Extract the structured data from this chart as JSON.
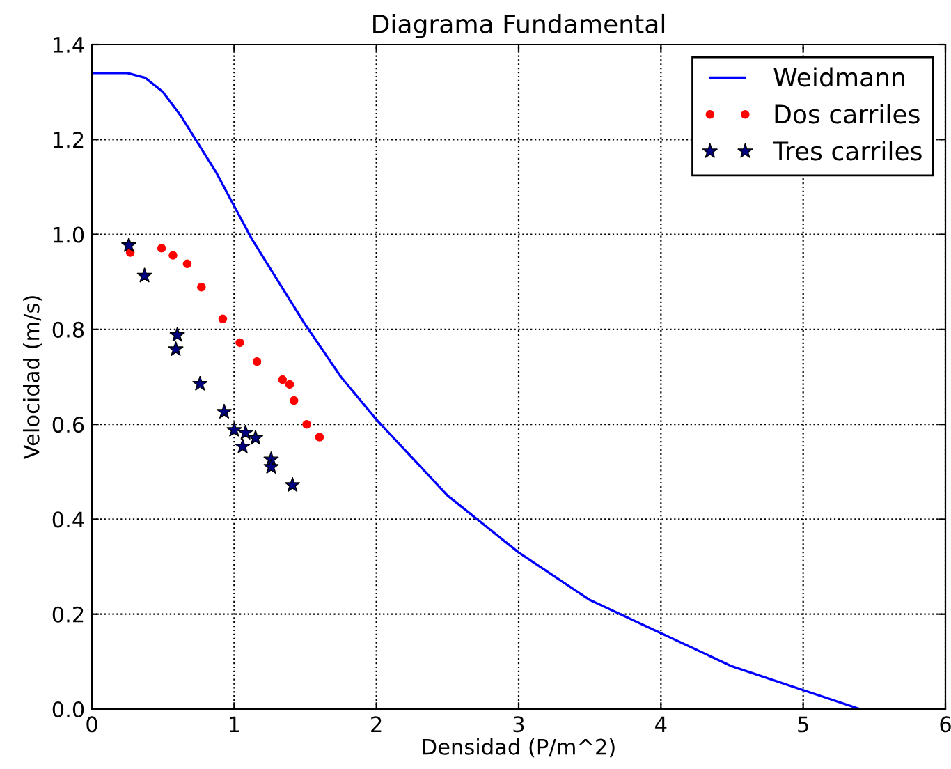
{
  "chart_data": {
    "type": "line",
    "title": "Diagrama Fundamental",
    "xlabel": "Densidad (P/m^2)",
    "ylabel": "Velocidad (m/s)",
    "xlim": [
      0,
      6
    ],
    "ylim": [
      0,
      1.4
    ],
    "xticks": [
      0,
      1,
      2,
      3,
      4,
      5,
      6
    ],
    "yticks": [
      {
        "value": 0,
        "label": "0.0"
      },
      0.2,
      0.4,
      0.6,
      0.8,
      {
        "value": 1,
        "label": "1.0"
      },
      1.2,
      1.4
    ],
    "grid": true,
    "legend": "top right",
    "series": [
      {
        "name": "Weidmann",
        "color": "#0000ff",
        "marker": "none",
        "line_style": "solid",
        "x": [
          0,
          0.15,
          0.25,
          0.375,
          0.5,
          0.625,
          0.75,
          0.875,
          1.0,
          1.125,
          1.25,
          1.5,
          1.75,
          2.0,
          2.5,
          3.0,
          3.5,
          4.0,
          4.5,
          5.0,
          5.4
        ],
        "values": [
          1.34,
          1.34,
          1.34,
          1.33,
          1.3,
          1.25,
          1.19,
          1.13,
          1.06,
          0.99,
          0.93,
          0.81,
          0.7,
          0.61,
          0.45,
          0.33,
          0.23,
          0.16,
          0.09,
          0.04,
          0.0
        ]
      },
      {
        "name": "Dos carriles",
        "type": "scatter",
        "color": "#ff0000",
        "marker": "circle",
        "x": [
          0.27,
          0.49,
          0.57,
          0.67,
          0.77,
          0.92,
          1.04,
          1.16,
          1.34,
          1.39,
          1.42,
          1.51,
          1.6
        ],
        "values": [
          0.962,
          0.971,
          0.956,
          0.938,
          0.889,
          0.822,
          0.772,
          0.732,
          0.694,
          0.684,
          0.65,
          0.6,
          0.573
        ]
      },
      {
        "name": "Tres carriles",
        "type": "scatter",
        "color": "#000080",
        "marker": "star",
        "x": [
          0.26,
          0.37,
          0.6,
          0.59,
          0.76,
          0.93,
          1.0,
          1.08,
          1.15,
          1.06,
          1.26,
          1.26,
          1.41
        ],
        "values": [
          0.977,
          0.913,
          0.788,
          0.758,
          0.685,
          0.626,
          0.588,
          0.582,
          0.571,
          0.553,
          0.526,
          0.51,
          0.472
        ]
      }
    ]
  }
}
